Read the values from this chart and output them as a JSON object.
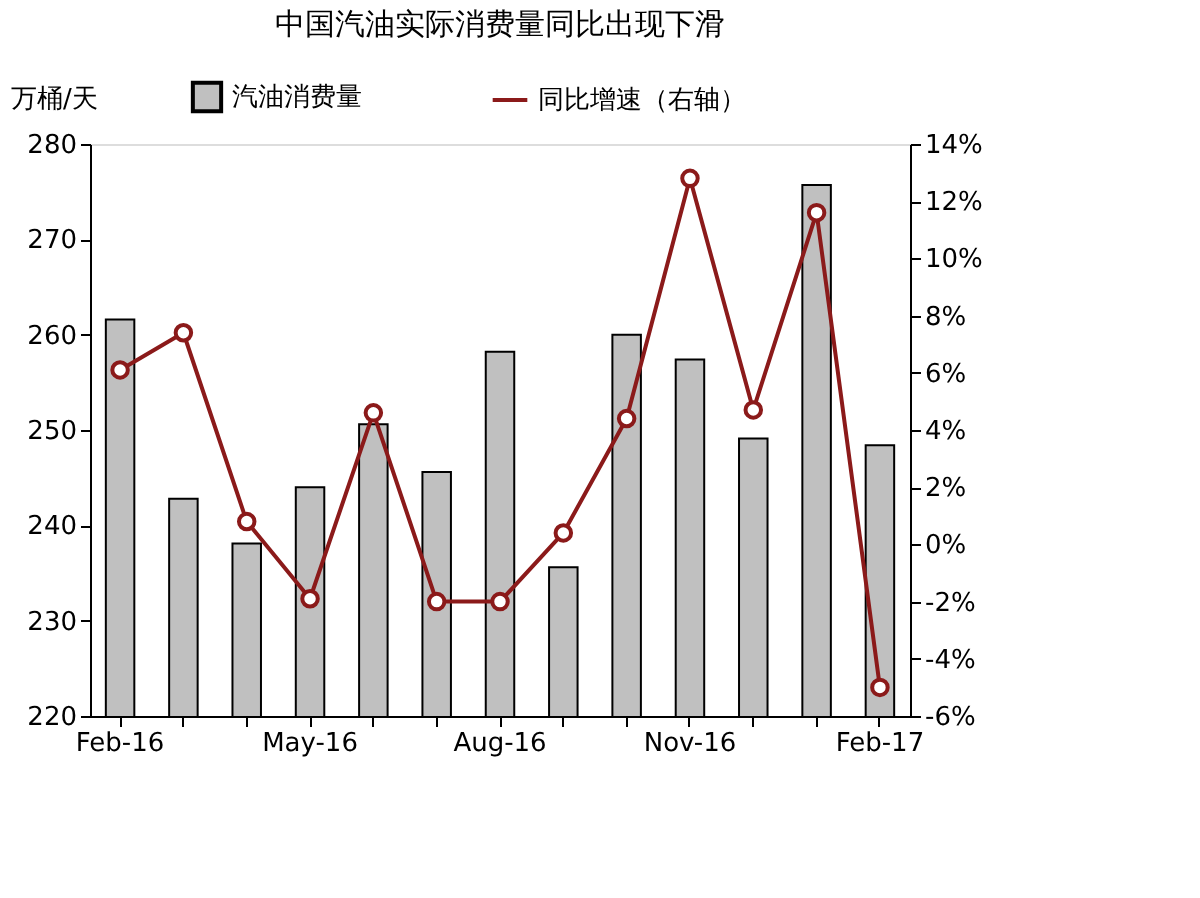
{
  "chart_data": {
    "type": "bar",
    "title": "中国汽油实际消费量同比出现下滑",
    "ylabel": "万桶/天",
    "categories": [
      "Feb-16",
      null,
      null,
      "May-16",
      null,
      null,
      "Aug-16",
      null,
      null,
      "Nov-16",
      null,
      null,
      "Feb-17"
    ],
    "series": [
      {
        "name": "汽油消费量",
        "color": "#c0c0c0",
        "values": [
          261.6,
          242.8,
          238.1,
          244.0,
          250.6,
          245.6,
          258.2,
          235.6,
          260.0,
          257.4,
          249.1,
          275.7,
          248.4
        ]
      },
      {
        "name": "同比增速（右轴）",
        "type": "line",
        "axis": "y2",
        "color": "#8b1a1a",
        "marker": "circle",
        "values": [
          6.1,
          7.4,
          0.8,
          -1.9,
          4.6,
          -2.0,
          -2.0,
          0.4,
          4.4,
          12.8,
          4.7,
          11.6,
          -5.0
        ]
      }
    ],
    "ylim": [
      220,
      280
    ],
    "yticks": [
      220,
      230,
      240,
      250,
      260,
      270,
      280
    ],
    "y2lim": [
      -6,
      14
    ],
    "y2ticks": [
      {
        "value": -6,
        "label": "-6%"
      },
      {
        "value": -4,
        "label": "-4%"
      },
      {
        "value": -2,
        "label": "-2%"
      },
      {
        "value": 0,
        "label": "0%"
      },
      {
        "value": 2,
        "label": "2%"
      },
      {
        "value": 4,
        "label": "4%"
      },
      {
        "value": 6,
        "label": "6%"
      },
      {
        "value": 8,
        "label": "8%"
      },
      {
        "value": 10,
        "label": "10%"
      },
      {
        "value": 12,
        "label": "12%"
      },
      {
        "value": 14,
        "label": "14%"
      }
    ],
    "grid": false,
    "legend": "top"
  }
}
